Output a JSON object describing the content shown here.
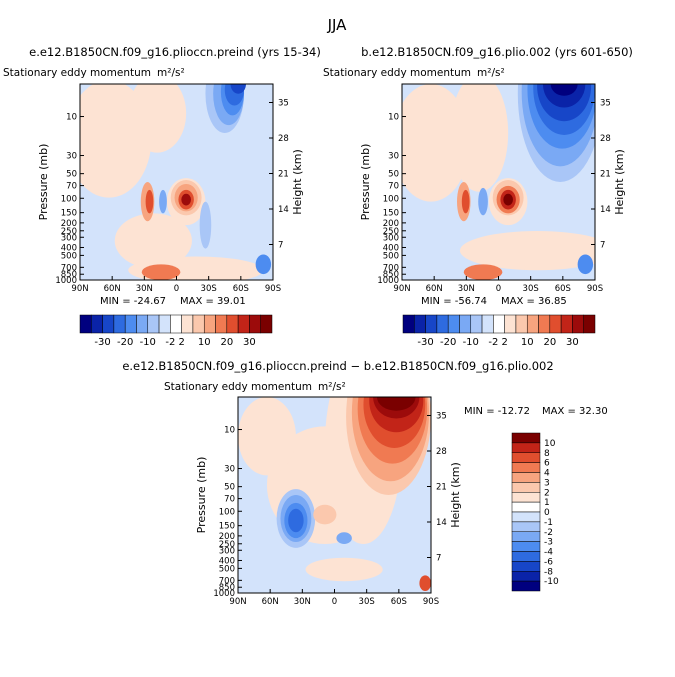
{
  "figure": {
    "season_title": "JJA"
  },
  "chart_data": [
    {
      "type": "contour",
      "title": "e.e12.B1850CN.f09_g16.plioccn.preind (yrs 15-34)",
      "subtitle": "Stationary eddy momentum",
      "units": "m²/s²",
      "xlabel": "",
      "ylabel": "Pressure (mb)",
      "ylabel_right": "Height (km)",
      "x_ticks": [
        "90N",
        "60N",
        "30N",
        "0",
        "30S",
        "60S",
        "90S"
      ],
      "y_ticks": [
        "10",
        "30",
        "50",
        "70",
        "100",
        "150",
        "200",
        "250",
        "300",
        "400",
        "500",
        "700",
        "850",
        "1000"
      ],
      "height_ticks": [
        "35",
        "28",
        "21",
        "14",
        "7"
      ],
      "stats": {
        "min_label": "MIN = -24.67",
        "max_label": "MAX = 39.01",
        "min": -24.67,
        "max": 39.01
      },
      "colorbar": {
        "orientation": "horizontal",
        "labels": [
          "-30",
          "-20",
          "-10",
          "-2",
          "2",
          "10",
          "20",
          "30"
        ]
      }
    },
    {
      "type": "contour",
      "title": "b.e12.B1850CN.f09_g16.plio.002 (yrs 601-650)",
      "subtitle": "Stationary eddy momentum",
      "units": "m²/s²",
      "xlabel": "",
      "ylabel": "Pressure (mb)",
      "ylabel_right": "Height (km)",
      "x_ticks": [
        "90N",
        "60N",
        "30N",
        "0",
        "30S",
        "60S",
        "90S"
      ],
      "y_ticks": [
        "10",
        "30",
        "50",
        "70",
        "100",
        "150",
        "200",
        "250",
        "300",
        "400",
        "500",
        "700",
        "850",
        "1000"
      ],
      "height_ticks": [
        "35",
        "28",
        "21",
        "14",
        "7"
      ],
      "stats": {
        "min_label": "MIN = -56.74",
        "max_label": "MAX = 36.85",
        "min": -56.74,
        "max": 36.85
      },
      "colorbar": {
        "orientation": "horizontal",
        "labels": [
          "-30",
          "-20",
          "-10",
          "-2",
          "2",
          "10",
          "20",
          "30"
        ]
      }
    },
    {
      "type": "contour",
      "title": "e.e12.B1850CN.f09_g16.plioccn.preind − b.e12.B1850CN.f09_g16.plio.002",
      "subtitle": "Stationary eddy momentum",
      "units": "m²/s²",
      "xlabel": "",
      "ylabel": "Pressure (mb)",
      "ylabel_right": "Height (km)",
      "x_ticks": [
        "90N",
        "60N",
        "30N",
        "0",
        "30S",
        "60S",
        "90S"
      ],
      "y_ticks": [
        "10",
        "30",
        "50",
        "70",
        "100",
        "150",
        "200",
        "250",
        "300",
        "400",
        "500",
        "700",
        "850",
        "1000"
      ],
      "height_ticks": [
        "35",
        "28",
        "21",
        "14",
        "7"
      ],
      "stats": {
        "min_label": "MIN = -12.72",
        "max_label": "MAX = 32.30",
        "min": -12.72,
        "max": 32.3
      },
      "colorbar": {
        "orientation": "vertical",
        "labels": [
          "10",
          "8",
          "6",
          "4",
          "3",
          "2",
          "1",
          "0",
          "-1",
          "-2",
          "-3",
          "-4",
          "-6",
          "-8",
          "-10"
        ]
      }
    }
  ],
  "palette": [
    "#00007f",
    "#0a23a8",
    "#1746c8",
    "#2e6be0",
    "#4d8cf0",
    "#7aa9f4",
    "#a9c6f7",
    "#d3e3fb",
    "#fde3d3",
    "#fbc8ad",
    "#f7a47f",
    "#f07a52",
    "#e04e2e",
    "#c22418",
    "#9c0b0b",
    "#7a0000"
  ]
}
